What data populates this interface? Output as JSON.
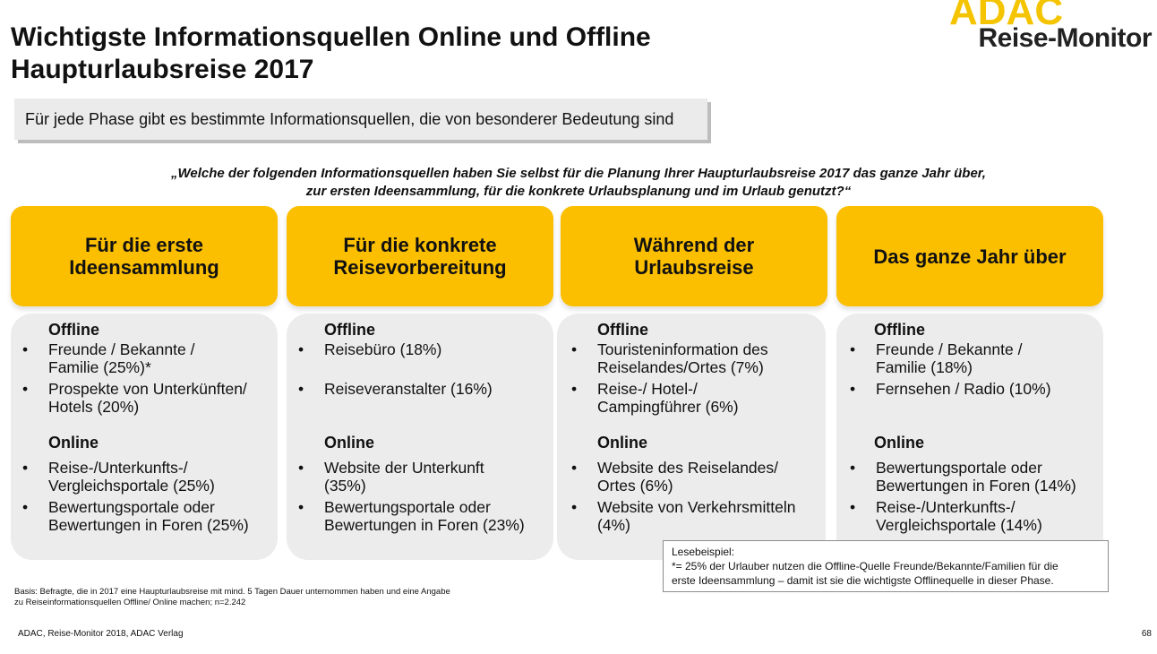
{
  "title": {
    "line1": "Wichtigste Informationsquellen Online und Offline",
    "line2": "Haupturlaubsreise 2017"
  },
  "logo": {
    "brand": "ADAC",
    "product": "Reise-Monitor"
  },
  "subtitle": "Für jede Phase gibt es bestimmte Informationsquellen, die von besonderer Bedeutung sind",
  "question": {
    "line1": "„Welche der folgenden Informationsquellen haben Sie selbst für die Planung Ihrer Haupturlaubsreise 2017 das ganze Jahr über,",
    "line2": "zur ersten Ideensammlung, für die konkrete Urlaubsplanung und im Urlaub genutzt?“"
  },
  "colors": {
    "accent": "#fcbf00",
    "panel": "#ececec",
    "text": "#111111"
  },
  "labels": {
    "offline": "Offline",
    "online": "Online",
    "bullet": "•"
  },
  "phases": [
    {
      "header_line1": "Für die erste",
      "header_line2": "Ideensammlung",
      "offline": [
        {
          "l1": "Freunde / Bekannte /",
          "l2": "Familie (25%)*"
        },
        {
          "l1": "Prospekte von Unterkünften/",
          "l2": "Hotels (20%)"
        }
      ],
      "online": [
        {
          "l1": "Reise-/Unterkunfts-/",
          "l2": "Vergleichsportale (25%)"
        },
        {
          "l1": "Bewertungsportale oder",
          "l2": "Bewertungen in Foren (25%)"
        }
      ]
    },
    {
      "header_line1": "Für die konkrete",
      "header_line2": "Reisevorbereitung",
      "offline": [
        {
          "l1": "Reisebüro (18%)",
          "l2": ""
        },
        {
          "l1": "Reiseveranstalter (16%)",
          "l2": ""
        }
      ],
      "online": [
        {
          "l1": "Website der Unterkunft",
          "l2": "(35%)"
        },
        {
          "l1": "Bewertungsportale oder",
          "l2": "Bewertungen in Foren (23%)"
        }
      ]
    },
    {
      "header_line1": "Während der",
      "header_line2": "Urlaubsreise",
      "offline": [
        {
          "l1": "Touristeninformation des",
          "l2": "Reiselandes/Ortes (7%)"
        },
        {
          "l1": "Reise-/ Hotel-/",
          "l2": "Campingführer (6%)"
        }
      ],
      "online": [
        {
          "l1": "Website des Reiselandes/",
          "l2": "Ortes (6%)"
        },
        {
          "l1": "Website von Verkehrsmitteln",
          "l2": "(4%)"
        }
      ]
    },
    {
      "header_line1": "Das ganze Jahr über",
      "header_line2": "",
      "offline": [
        {
          "l1": "Freunde / Bekannte /",
          "l2": "Familie (18%)"
        },
        {
          "l1": "Fernsehen / Radio (10%)",
          "l2": ""
        }
      ],
      "online": [
        {
          "l1": "Bewertungsportale oder",
          "l2": "Bewertungen in Foren (14%)"
        },
        {
          "l1": "Reise-/Unterkunfts-/",
          "l2": "Vergleichsportale (14%)"
        }
      ]
    }
  ],
  "reading_example": {
    "heading": "Lesebeispiel:",
    "line1": "*= 25% der Urlauber nutzen die Offline-Quelle Freunde/Bekannte/Familien für die",
    "line2": "erste Ideensammlung – damit ist sie die wichtigste Offlinequelle in dieser Phase."
  },
  "basis": {
    "line1": "Basis: Befragte, die in 2017 eine Haupturlaubsreise mit mind. 5 Tagen Dauer unternommen haben und eine Angabe",
    "line2": "zu Reiseinformationsquellen Offline/ Online machen; n=2.242"
  },
  "footer": {
    "source": "ADAC, Reise-Monitor 2018, ADAC Verlag",
    "page_number": "68"
  }
}
